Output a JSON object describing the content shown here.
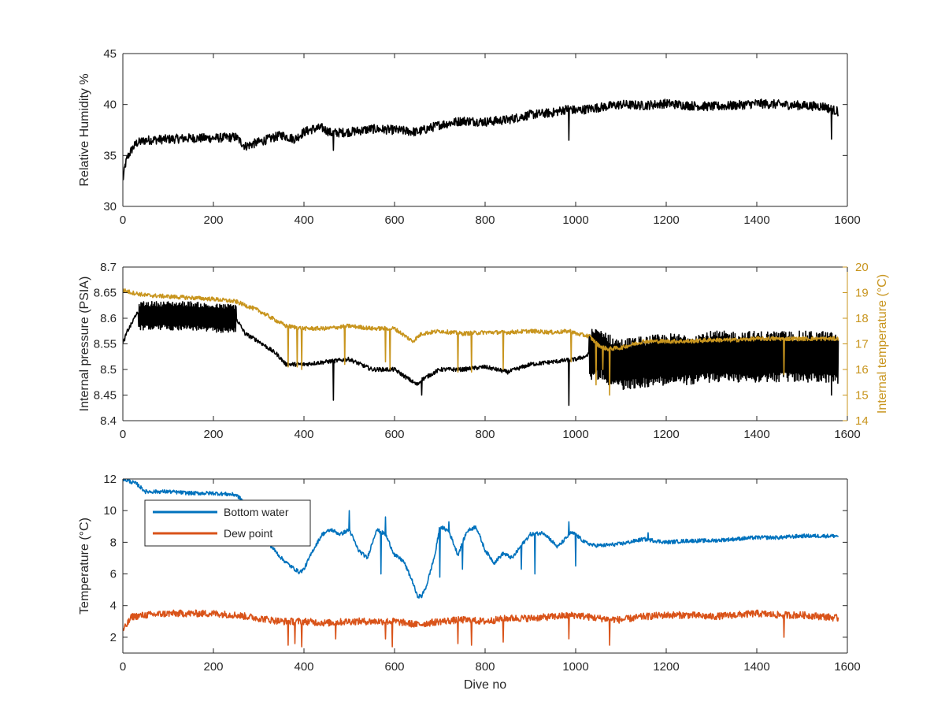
{
  "colors": {
    "humidity": "#000000",
    "pressure": "#000000",
    "internal_temperature": "#C8951E",
    "bottom_water": "#0072BD",
    "dew_point": "#D95319",
    "axis": "#262626"
  },
  "chart_data": [
    {
      "type": "line",
      "title": "",
      "xlabel": "",
      "ylabel": "Relative Humidity %",
      "xlim": [
        0,
        1600
      ],
      "ylim": [
        30,
        45
      ],
      "x_ticks": [
        "0",
        "200",
        "400",
        "600",
        "800",
        "1000",
        "1200",
        "1400",
        "1600"
      ],
      "y_ticks": [
        "30",
        "35",
        "40",
        "45"
      ],
      "grid": false,
      "series": [
        {
          "name": "",
          "color": "#000000",
          "x": [
            0,
            5,
            10,
            20,
            30,
            50,
            100,
            150,
            200,
            250,
            270,
            300,
            350,
            380,
            400,
            420,
            440,
            460,
            500,
            550,
            600,
            650,
            700,
            750,
            800,
            850,
            900,
            950,
            985,
            1000,
            1050,
            1100,
            1150,
            1200,
            1250,
            1300,
            1350,
            1400,
            1450,
            1500,
            1550,
            1560,
            1580
          ],
          "y": [
            32.5,
            34,
            34.8,
            35.6,
            36.2,
            36.5,
            36.6,
            36.7,
            36.7,
            36.8,
            35.9,
            36.3,
            37,
            36.6,
            37.3,
            37.6,
            37.7,
            37.2,
            37.3,
            37.6,
            37.5,
            37.3,
            38,
            38.4,
            38.3,
            38.5,
            39,
            39.2,
            39.6,
            39.4,
            39.7,
            40,
            39.9,
            40.1,
            39.9,
            39.8,
            39.9,
            40.1,
            40,
            39.9,
            39.8,
            39.6,
            39.3
          ],
          "noise_amplitude": 0.45,
          "spikes": [
            [
              985,
              36.5
            ],
            [
              465,
              35.5
            ],
            [
              1565,
              36.6
            ]
          ]
        }
      ]
    },
    {
      "type": "line",
      "title": "",
      "xlabel": "",
      "ylabel": "Internal pressure (PSIA)",
      "ylabel_right": "Internal temperature (°C)",
      "xlim": [
        0,
        1600
      ],
      "ylim": [
        8.4,
        8.7
      ],
      "ylim_right": [
        14,
        20
      ],
      "x_ticks": [
        "0",
        "200",
        "400",
        "600",
        "800",
        "1000",
        "1200",
        "1400",
        "1600"
      ],
      "y_ticks": [
        "8.4",
        "8.45",
        "8.5",
        "8.55",
        "8.6",
        "8.65",
        "8.7"
      ],
      "y_ticks_right": [
        "14",
        "15",
        "16",
        "17",
        "18",
        "19",
        "20"
      ],
      "grid": false,
      "series": [
        {
          "name": "",
          "axis": "left",
          "color": "#000000",
          "x": [
            0,
            10,
            20,
            30,
            35,
            100,
            150,
            200,
            250,
            270,
            300,
            340,
            360,
            380,
            400,
            450,
            500,
            550,
            600,
            650,
            660,
            700,
            750,
            800,
            850,
            900,
            950,
            1000,
            1020,
            1030,
            1060,
            1080,
            1100,
            1150,
            1200,
            1250,
            1300,
            1350,
            1400,
            1450,
            1500,
            1550,
            1580
          ],
          "y": [
            8.55,
            8.575,
            8.59,
            8.61,
            8.605,
            8.605,
            8.605,
            8.6,
            8.6,
            8.57,
            8.555,
            8.53,
            8.51,
            8.51,
            8.51,
            8.515,
            8.52,
            8.5,
            8.5,
            8.47,
            8.48,
            8.5,
            8.5,
            8.505,
            8.495,
            8.51,
            8.515,
            8.52,
            8.525,
            8.53,
            8.53,
            8.515,
            8.51,
            8.515,
            8.52,
            8.52,
            8.525,
            8.525,
            8.525,
            8.525,
            8.525,
            8.525,
            8.52
          ],
          "noise_amplitude": 0.004,
          "dense_bands": [
            [
              35,
              250,
              0.028
            ],
            [
              1030,
              1580,
              0.05
            ]
          ],
          "spikes": [
            [
              465,
              8.44
            ],
            [
              660,
              8.45
            ],
            [
              985,
              8.43
            ],
            [
              1565,
              8.45
            ]
          ]
        },
        {
          "name": "",
          "axis": "right",
          "color": "#C8951E",
          "x": [
            0,
            20,
            50,
            100,
            150,
            200,
            250,
            300,
            340,
            360,
            380,
            400,
            450,
            500,
            550,
            600,
            640,
            660,
            700,
            750,
            800,
            850,
            900,
            950,
            990,
            1000,
            1030,
            1050,
            1070,
            1100,
            1150,
            1200,
            1250,
            1300,
            1350,
            1400,
            1450,
            1500,
            1550,
            1580
          ],
          "y": [
            19.1,
            19.0,
            18.9,
            18.85,
            18.8,
            18.75,
            18.65,
            18.3,
            17.9,
            17.7,
            17.65,
            17.6,
            17.6,
            17.7,
            17.6,
            17.6,
            17.1,
            17.4,
            17.5,
            17.4,
            17.45,
            17.45,
            17.5,
            17.45,
            17.5,
            17.4,
            17.3,
            16.95,
            16.8,
            16.85,
            17.1,
            17.1,
            17.1,
            17.15,
            17.15,
            17.2,
            17.2,
            17.2,
            17.2,
            17.2
          ],
          "noise_amplitude": 0.08,
          "spikes": [
            [
              365,
              16.1
            ],
            [
              385,
              16.1
            ],
            [
              395,
              16.0
            ],
            [
              490,
              16.2
            ],
            [
              580,
              16.3
            ],
            [
              590,
              16.0
            ],
            [
              740,
              15.9
            ],
            [
              770,
              15.9
            ],
            [
              840,
              16.0
            ],
            [
              990,
              16.3
            ],
            [
              1045,
              15.4
            ],
            [
              1060,
              16.0
            ],
            [
              1075,
              15.0
            ],
            [
              1460,
              15.8
            ]
          ]
        }
      ]
    },
    {
      "type": "line",
      "title": "",
      "xlabel": "Dive no",
      "ylabel": "Temperature (°C)",
      "xlim": [
        0,
        1600
      ],
      "ylim": [
        1,
        12
      ],
      "x_ticks": [
        "0",
        "200",
        "400",
        "600",
        "800",
        "1000",
        "1200",
        "1400",
        "1600"
      ],
      "y_ticks": [
        "2",
        "4",
        "6",
        "8",
        "10",
        "12"
      ],
      "legend_position": "top-left",
      "grid": false,
      "series": [
        {
          "name": "Bottom water",
          "color": "#0072BD",
          "x": [
            0,
            30,
            50,
            100,
            150,
            200,
            250,
            270,
            290,
            320,
            350,
            370,
            390,
            400,
            420,
            440,
            460,
            480,
            500,
            520,
            540,
            560,
            580,
            600,
            620,
            640,
            650,
            660,
            670,
            690,
            700,
            720,
            740,
            760,
            780,
            800,
            820,
            840,
            860,
            880,
            900,
            930,
            960,
            990,
            1000,
            1020,
            1040,
            1060,
            1100,
            1150,
            1200,
            1250,
            1300,
            1350,
            1400,
            1450,
            1500,
            1550,
            1580
          ],
          "y": [
            12,
            11.7,
            11.2,
            11.2,
            11.1,
            11.1,
            11,
            10.5,
            9.5,
            8,
            7,
            6.5,
            6.1,
            6.3,
            7.5,
            8.5,
            8.8,
            8.5,
            8.8,
            7.5,
            7,
            8.8,
            8.5,
            7.2,
            6.8,
            5.5,
            4.6,
            4.6,
            5.2,
            7.3,
            9.0,
            8.7,
            7.2,
            8.7,
            9.0,
            7.5,
            6.7,
            7.3,
            7.0,
            7.8,
            8.5,
            8.6,
            7.7,
            8.6,
            8.5,
            8.0,
            7.8,
            7.8,
            7.9,
            8.2,
            8.0,
            8.1,
            8.1,
            8.2,
            8.3,
            8.3,
            8.4,
            8.4,
            8.4
          ],
          "noise_amplitude": 0.12,
          "spikes": [
            [
              500,
              10.0
            ],
            [
              580,
              9.6
            ],
            [
              570,
              6.0
            ],
            [
              700,
              5.8
            ],
            [
              720,
              9.3
            ],
            [
              750,
              6.3
            ],
            [
              880,
              6.3
            ],
            [
              910,
              6.0
            ],
            [
              985,
              9.3
            ],
            [
              1000,
              6.5
            ],
            [
              1160,
              8.6
            ]
          ]
        },
        {
          "name": "Dew point",
          "color": "#D95319",
          "x": [
            0,
            20,
            50,
            100,
            200,
            250,
            300,
            350,
            400,
            450,
            500,
            550,
            600,
            650,
            700,
            750,
            800,
            850,
            900,
            950,
            1000,
            1050,
            1100,
            1150,
            1200,
            1250,
            1300,
            1350,
            1400,
            1450,
            1500,
            1550,
            1580
          ],
          "y": [
            2.4,
            3.3,
            3.4,
            3.5,
            3.5,
            3.4,
            3.2,
            3.0,
            3.0,
            2.9,
            3.0,
            3.0,
            3.0,
            2.8,
            3.0,
            3.1,
            3.0,
            3.2,
            3.2,
            3.3,
            3.4,
            3.2,
            3.1,
            3.3,
            3.4,
            3.4,
            3.3,
            3.4,
            3.5,
            3.4,
            3.4,
            3.3,
            3.2
          ],
          "noise_amplitude": 0.22,
          "spikes": [
            [
              365,
              1.5
            ],
            [
              380,
              1.6
            ],
            [
              395,
              1.4
            ],
            [
              470,
              1.9
            ],
            [
              580,
              1.9
            ],
            [
              595,
              1.4
            ],
            [
              740,
              1.6
            ],
            [
              770,
              1.5
            ],
            [
              840,
              1.7
            ],
            [
              985,
              1.9
            ],
            [
              1075,
              1.5
            ],
            [
              1460,
              2.0
            ]
          ]
        }
      ]
    }
  ]
}
